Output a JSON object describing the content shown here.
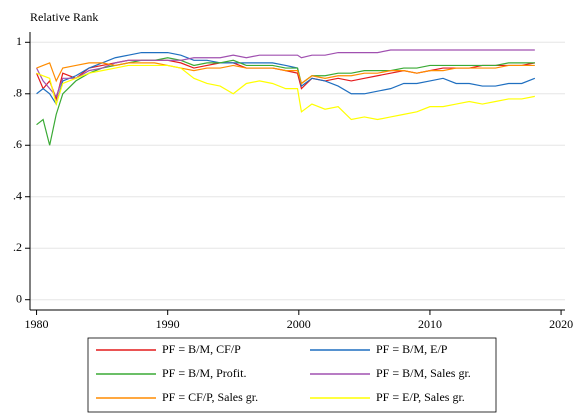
{
  "chart_data": {
    "type": "line",
    "y_label": "Relative Rank",
    "x": [
      1980,
      1980.5,
      1981,
      1981.5,
      1982,
      1983,
      1984,
      1985,
      1986,
      1987,
      1988,
      1989,
      1990,
      1991,
      1992,
      1993,
      1994,
      1995,
      1996,
      1997,
      1998,
      1999,
      1999.9,
      2000.2,
      2001,
      2002,
      2003,
      2004,
      2005,
      2006,
      2007,
      2008,
      2009,
      2010,
      2011,
      2012,
      2013,
      2014,
      2015,
      2016,
      2017,
      2018
    ],
    "series": [
      {
        "name": "PF = B/M, CF/P",
        "color": "#e41a1c",
        "values": [
          0.88,
          0.82,
          0.85,
          0.78,
          0.88,
          0.86,
          0.9,
          0.91,
          0.92,
          0.93,
          0.93,
          0.93,
          0.93,
          0.92,
          0.9,
          0.91,
          0.92,
          0.92,
          0.9,
          0.9,
          0.9,
          0.89,
          0.88,
          0.82,
          0.86,
          0.85,
          0.86,
          0.85,
          0.86,
          0.87,
          0.88,
          0.89,
          0.88,
          0.89,
          0.9,
          0.9,
          0.9,
          0.91,
          0.91,
          0.91,
          0.91,
          0.92
        ]
      },
      {
        "name": "PF = B/M, E/P",
        "color": "#1f6fc0",
        "values": [
          0.8,
          0.82,
          0.8,
          0.76,
          0.85,
          0.87,
          0.9,
          0.92,
          0.94,
          0.95,
          0.96,
          0.96,
          0.96,
          0.95,
          0.93,
          0.93,
          0.92,
          0.92,
          0.92,
          0.92,
          0.92,
          0.91,
          0.9,
          0.83,
          0.86,
          0.85,
          0.83,
          0.8,
          0.8,
          0.81,
          0.82,
          0.84,
          0.84,
          0.85,
          0.86,
          0.84,
          0.84,
          0.83,
          0.83,
          0.84,
          0.84,
          0.86
        ]
      },
      {
        "name": "PF = B/M, Profit.",
        "color": "#3aaa35",
        "values": [
          0.68,
          0.7,
          0.6,
          0.72,
          0.8,
          0.85,
          0.88,
          0.9,
          0.91,
          0.92,
          0.93,
          0.93,
          0.94,
          0.93,
          0.91,
          0.92,
          0.92,
          0.93,
          0.91,
          0.91,
          0.91,
          0.9,
          0.9,
          0.84,
          0.87,
          0.87,
          0.88,
          0.88,
          0.89,
          0.89,
          0.89,
          0.9,
          0.9,
          0.91,
          0.91,
          0.91,
          0.91,
          0.91,
          0.91,
          0.92,
          0.92,
          0.92
        ]
      },
      {
        "name": "PF = B/M, Sales gr.",
        "color": "#a050b0",
        "values": [
          0.9,
          0.85,
          0.82,
          0.79,
          0.86,
          0.86,
          0.89,
          0.9,
          0.92,
          0.93,
          0.93,
          0.93,
          0.93,
          0.93,
          0.94,
          0.94,
          0.94,
          0.95,
          0.94,
          0.95,
          0.95,
          0.95,
          0.95,
          0.94,
          0.95,
          0.95,
          0.96,
          0.96,
          0.96,
          0.96,
          0.97,
          0.97,
          0.97,
          0.97,
          0.97,
          0.97,
          0.97,
          0.97,
          0.97,
          0.97,
          0.97,
          0.97
        ]
      },
      {
        "name": "PF = CF/P, Sales gr.",
        "color": "#ff8c00",
        "values": [
          0.9,
          0.91,
          0.92,
          0.85,
          0.9,
          0.91,
          0.92,
          0.92,
          0.91,
          0.92,
          0.92,
          0.92,
          0.91,
          0.9,
          0.89,
          0.9,
          0.9,
          0.91,
          0.9,
          0.9,
          0.9,
          0.89,
          0.89,
          0.84,
          0.87,
          0.86,
          0.87,
          0.87,
          0.88,
          0.88,
          0.89,
          0.89,
          0.88,
          0.89,
          0.89,
          0.9,
          0.9,
          0.9,
          0.9,
          0.91,
          0.91,
          0.91
        ]
      },
      {
        "name": "PF = E/P, Sales gr.",
        "color": "#ffff00",
        "values": [
          0.88,
          0.87,
          0.86,
          0.76,
          0.84,
          0.86,
          0.88,
          0.89,
          0.9,
          0.91,
          0.91,
          0.91,
          0.91,
          0.9,
          0.86,
          0.84,
          0.83,
          0.8,
          0.84,
          0.85,
          0.84,
          0.82,
          0.82,
          0.73,
          0.76,
          0.74,
          0.75,
          0.7,
          0.71,
          0.7,
          0.71,
          0.72,
          0.73,
          0.75,
          0.75,
          0.76,
          0.77,
          0.76,
          0.77,
          0.78,
          0.78,
          0.79
        ]
      }
    ],
    "xlim": [
      1979.5,
      2020.3
    ],
    "xticks": [
      1980,
      1990,
      2000,
      2010,
      2020
    ],
    "ylim": [
      -0.04,
      1.04
    ],
    "yticks": [
      0,
      {
        "value": 0.2,
        "label": ".2"
      },
      {
        "value": 0.4,
        "label": ".4"
      },
      {
        "value": 0.6,
        "label": ".6"
      },
      {
        "value": 0.8,
        "label": ".8"
      },
      1
    ],
    "grid": true,
    "legend": "bottom"
  }
}
